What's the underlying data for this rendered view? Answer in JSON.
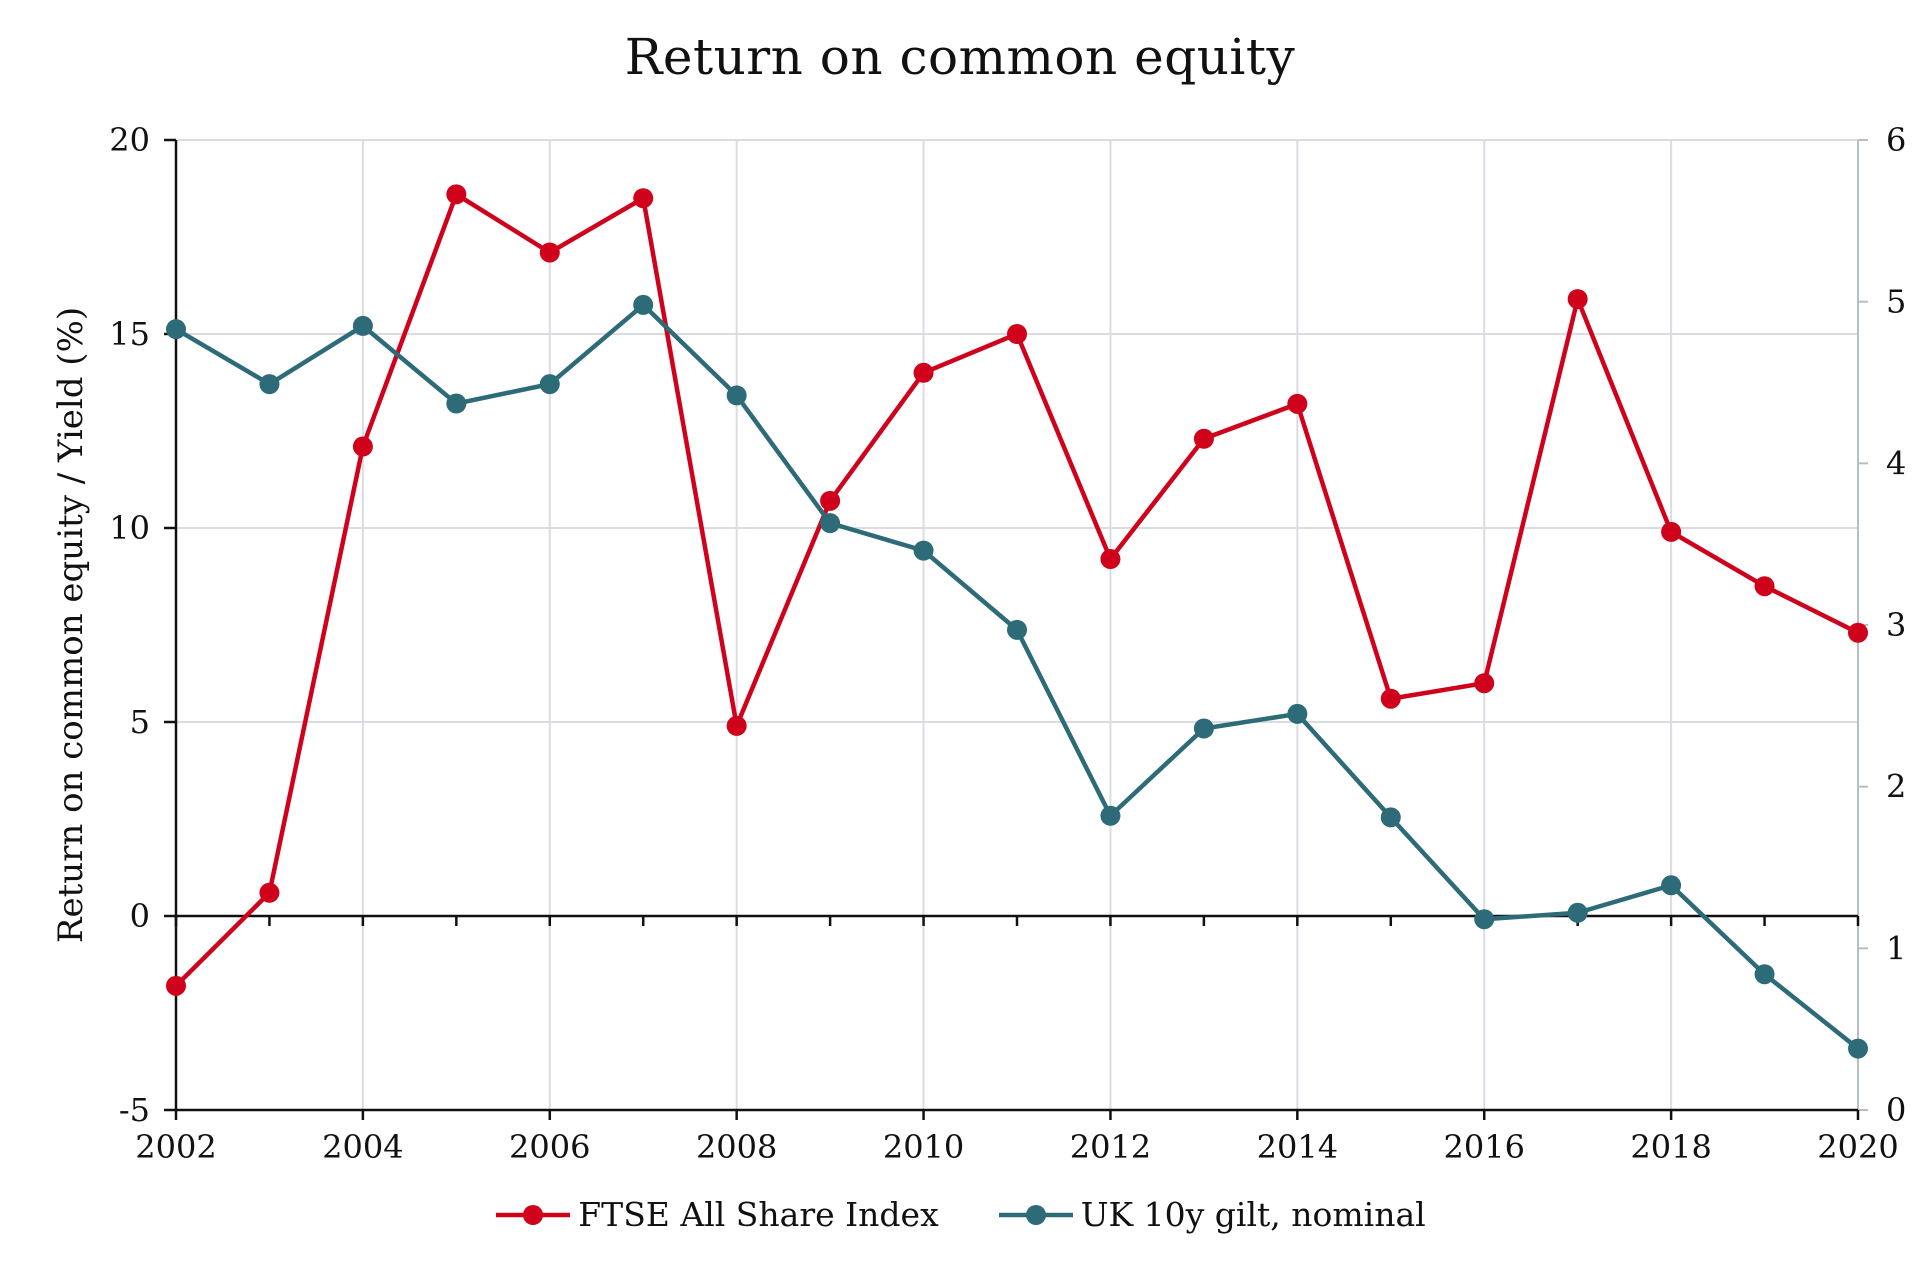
{
  "chart_data": {
    "type": "line",
    "title": "Return on common equity",
    "xlabel": "",
    "ylabel": "Return on common equity / Yield (%)",
    "y2label": "",
    "x": [
      2002,
      2003,
      2004,
      2005,
      2006,
      2007,
      2008,
      2009,
      2010,
      2011,
      2012,
      2013,
      2014,
      2015,
      2016,
      2017,
      2018,
      2019,
      2020
    ],
    "xticks": [
      "2002",
      "2004",
      "2006",
      "2008",
      "2010",
      "2012",
      "2014",
      "2016",
      "2018",
      "2020"
    ],
    "xlim": [
      2002,
      2020
    ],
    "ylim": [
      -5,
      20
    ],
    "yticks": [
      "-5",
      "0",
      "5",
      "10",
      "15",
      "20"
    ],
    "y2lim": [
      0,
      6
    ],
    "y2ticks": [
      "0",
      "1",
      "2",
      "3",
      "4",
      "5",
      "6"
    ],
    "grid": true,
    "legend_position": "bottom-center",
    "series": [
      {
        "name": "FTSE All Share Index",
        "axis": "left",
        "color": "#d0021b",
        "values": [
          -1.8,
          0.6,
          12.1,
          18.6,
          17.1,
          18.5,
          4.9,
          10.7,
          14.0,
          15.0,
          9.2,
          12.3,
          13.2,
          5.6,
          6.0,
          15.9,
          9.9,
          8.5,
          7.3
        ]
      },
      {
        "name": "UK 10y gilt, nominal",
        "axis": "right",
        "color": "#2e6b78",
        "values": [
          4.83,
          4.49,
          4.85,
          4.37,
          4.49,
          4.98,
          4.42,
          3.63,
          3.46,
          2.97,
          1.82,
          2.36,
          2.45,
          1.81,
          1.18,
          1.22,
          1.39,
          0.84,
          0.38
        ]
      }
    ]
  }
}
